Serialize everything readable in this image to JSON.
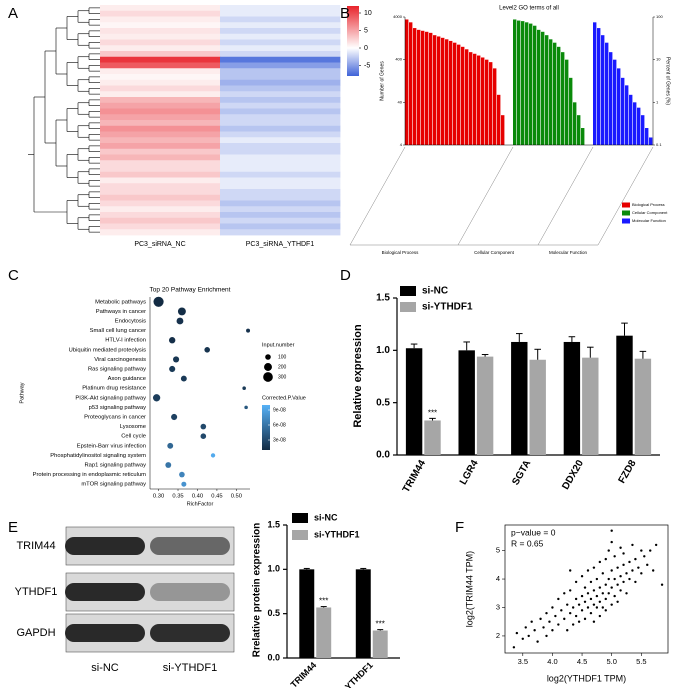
{
  "chart_data": [
    {
      "type": "heatmap",
      "panel": "A",
      "columns": [
        "PC3_siRNA_NC",
        "PC3_siRNA_YTHDF1"
      ],
      "values": [
        [
          1,
          -1
        ],
        [
          2,
          -1
        ],
        [
          1,
          -2
        ],
        [
          0.5,
          -1
        ],
        [
          1.5,
          -2
        ],
        [
          1,
          -1
        ],
        [
          2,
          -2
        ],
        [
          1,
          -1
        ],
        [
          3,
          -2
        ],
        [
          11,
          -7
        ],
        [
          9,
          -5
        ],
        [
          1,
          -3
        ],
        [
          0.5,
          -3
        ],
        [
          1,
          -4
        ],
        [
          2,
          -3
        ],
        [
          1,
          -2
        ],
        [
          4,
          -3
        ],
        [
          5,
          -2
        ],
        [
          6,
          -3
        ],
        [
          5,
          -2
        ],
        [
          4,
          -2
        ],
        [
          6,
          -3
        ],
        [
          5,
          -2
        ],
        [
          4,
          -1
        ],
        [
          5,
          -2
        ],
        [
          3,
          -2
        ],
        [
          4,
          -1
        ],
        [
          2,
          -1
        ],
        [
          2,
          -1
        ],
        [
          3,
          -2
        ],
        [
          1,
          -1
        ],
        [
          2,
          -1
        ],
        [
          2,
          -2
        ],
        [
          3,
          -2
        ],
        [
          2,
          -3
        ],
        [
          1,
          -2
        ],
        [
          2,
          -3
        ],
        [
          3,
          -2
        ],
        [
          2,
          -3
        ],
        [
          1,
          -2
        ]
      ],
      "zlim": [
        -8,
        12
      ],
      "zticks": [
        10,
        5,
        0,
        -5
      ],
      "colors": {
        "low": "#3f63d8",
        "mid": "#ffffff",
        "high": "#e8232b"
      }
    },
    {
      "type": "bar",
      "panel": "B",
      "title": "Level2 GO terms of all",
      "log": true,
      "ylabel": "Number of Genes",
      "y2label": "Percent of Genes (%)",
      "ylim": [
        4,
        4000
      ],
      "yticks": [
        4,
        40,
        400,
        4000
      ],
      "y2lim": [
        0.1,
        100
      ],
      "y2ticks": [
        0.1,
        1,
        10,
        100
      ],
      "series": [
        {
          "name": "Biological Process",
          "color": "#e60000",
          "values": [
            3500,
            3000,
            2200,
            2000,
            1900,
            1800,
            1700,
            1500,
            1400,
            1300,
            1200,
            1100,
            1000,
            900,
            800,
            700,
            600,
            550,
            500,
            450,
            400,
            350,
            250,
            60,
            20
          ]
        },
        {
          "name": "Cellular Component",
          "color": "#0a8a0a",
          "values": [
            3500,
            3300,
            3200,
            3000,
            2800,
            2500,
            2000,
            1800,
            1500,
            1200,
            1000,
            800,
            600,
            400,
            150,
            40,
            20,
            10
          ]
        },
        {
          "name": "Molecular Function",
          "color": "#1a1aff",
          "values": [
            3000,
            2200,
            1500,
            1000,
            600,
            400,
            250,
            150,
            100,
            60,
            40,
            30,
            20,
            10,
            6
          ]
        }
      ]
    },
    {
      "type": "dot",
      "panel": "C",
      "title": "Top 20 Pathway Enrichment",
      "xlabel": "RichFactor",
      "ylabel": "Pathway",
      "categories": [
        "Metabolic pathways",
        "Pathways in cancer",
        "Endocytosis",
        "Small cell lung cancer",
        "HTLV-I infection",
        "Ubiquitin mediated proteolysis",
        "Viral carcinogenesis",
        "Ras signaling pathway",
        "Axon guidance",
        "Platinum drug resistance",
        "PI3K-Akt signaling pathway",
        "p53 signaling pathway",
        "Proteoglycans in cancer",
        "Lysosome",
        "Cell cycle",
        "Epstein-Barr virus infection",
        "Phosphatidylinositol signaling system",
        "Rap1 signaling pathway",
        "Protein processing in endoplasmic reticulum",
        "mTOR signaling pathway"
      ],
      "x": [
        0.3,
        0.36,
        0.355,
        0.53,
        0.335,
        0.425,
        0.345,
        0.335,
        0.365,
        0.52,
        0.295,
        0.525,
        0.34,
        0.415,
        0.415,
        0.33,
        0.44,
        0.325,
        0.36,
        0.365
      ],
      "sizes": [
        330,
        200,
        150,
        50,
        130,
        100,
        120,
        120,
        110,
        40,
        170,
        40,
        120,
        100,
        100,
        110,
        60,
        110,
        100,
        80
      ],
      "pvalues": [
        1e-08,
        1.2e-08,
        1.5e-08,
        1.5e-08,
        1.3e-08,
        1.6e-08,
        1.8e-08,
        2e-08,
        2e-08,
        2e-08,
        2.2e-08,
        4e-08,
        2.5e-08,
        3e-08,
        3e-08,
        5e-08,
        9.5e-08,
        6e-08,
        7e-08,
        8e-08
      ],
      "xlim": [
        0.278,
        0.535
      ],
      "xticks": [
        {
          "value": 0.3,
          "label": "0.30"
        },
        0.35,
        {
          "value": 0.4,
          "label": "0.40"
        },
        0.45,
        {
          "value": 0.5,
          "label": "0.50"
        }
      ],
      "size_title": "Input.number",
      "size_ticks": [
        100,
        200,
        300
      ],
      "color_title": "Corrected.P.Value",
      "clim": [
        1e-08,
        1e-07
      ],
      "color_ticks": [
        {
          "value": 9e-08,
          "label": "9e-08"
        },
        {
          "value": 6e-08,
          "label": "6e-08"
        },
        {
          "value": 3e-08,
          "label": "3e-08"
        }
      ],
      "color_range": [
        "#132b43",
        "#56b1f7"
      ]
    },
    {
      "type": "bar",
      "panel": "D",
      "ylabel": "Relative expression",
      "categories": [
        "TRIM44",
        "LGR4",
        "SGTA",
        "DDX20",
        "FZD8"
      ],
      "ylim": [
        0,
        1.5
      ],
      "yticks": [
        {
          "value": 0,
          "label": "0.0"
        },
        0.5,
        {
          "value": 1,
          "label": "1.0"
        },
        1.5
      ],
      "series": [
        {
          "name": "si-NC",
          "color": "#000000",
          "values": [
            1.02,
            1.0,
            1.08,
            1.08,
            1.14
          ],
          "errors": [
            0.04,
            0.08,
            0.08,
            0.05,
            0.12
          ]
        },
        {
          "name": "si-YTHDF1",
          "color": "#a6a6a6",
          "values": [
            0.33,
            0.94,
            0.91,
            0.93,
            0.92
          ],
          "errors": [
            0.02,
            0.02,
            0.1,
            0.1,
            0.07
          ],
          "significance": [
            "***",
            null,
            null,
            null,
            null
          ]
        }
      ]
    },
    {
      "type": "blot",
      "panel": "E",
      "rows": [
        "TRIM44",
        "YTHDF1",
        "GAPDH"
      ],
      "lanes": [
        "si-NC",
        "si-YTHDF1"
      ]
    },
    {
      "type": "bar",
      "ylabel": "Rrelative protein expression",
      "categories": [
        "TRIM44",
        "YTHDF1"
      ],
      "ylim": [
        0,
        1.5
      ],
      "yticks": [
        {
          "value": 0,
          "label": "0.0"
        },
        0.5,
        {
          "value": 1,
          "label": "1.0"
        },
        1.5
      ],
      "series": [
        {
          "name": "si-NC",
          "color": "#000000",
          "values": [
            1.0,
            1.0
          ],
          "errors": [
            0.01,
            0.01
          ]
        },
        {
          "name": "si-YTHDF1",
          "color": "#a6a6a6",
          "values": [
            0.57,
            0.31
          ],
          "errors": [
            0.01,
            0.01
          ],
          "significance": [
            "***",
            "***"
          ]
        }
      ]
    },
    {
      "type": "scatter",
      "panel": "F",
      "xlabel": "log2(YTHDF1 TPM)",
      "ylabel": "log2(TRIM44 TPM)",
      "annotations": [
        "p−value = 0",
        "R = 0.65"
      ],
      "color": "#000000",
      "xlim": [
        3.2,
        5.95
      ],
      "ylim": [
        1.4,
        5.9
      ],
      "xticks": [
        3.5,
        {
          "value": 4,
          "label": "4.0"
        },
        4.5,
        {
          "value": 5,
          "label": "5.0"
        },
        5.5
      ],
      "yticks": [
        2,
        3,
        4,
        5
      ],
      "x": [
        3.35,
        3.4,
        3.5,
        3.55,
        3.6,
        3.65,
        3.7,
        3.75,
        3.8,
        3.85,
        3.9,
        3.9,
        3.95,
        4.0,
        4.0,
        4.05,
        4.1,
        4.1,
        4.15,
        4.2,
        4.2,
        4.25,
        4.25,
        4.3,
        4.3,
        4.35,
        4.35,
        4.4,
        4.4,
        4.4,
        4.45,
        4.45,
        4.5,
        4.5,
        4.5,
        4.55,
        4.55,
        4.55,
        4.6,
        4.6,
        4.6,
        4.65,
        4.65,
        4.65,
        4.7,
        4.7,
        4.7,
        4.7,
        4.75,
        4.75,
        4.75,
        4.8,
        4.8,
        4.8,
        4.8,
        4.85,
        4.85,
        4.85,
        4.9,
        4.9,
        4.9,
        4.9,
        4.95,
        4.95,
        4.95,
        5.0,
        5.0,
        5.0,
        5.0,
        5.05,
        5.05,
        5.05,
        5.1,
        5.1,
        5.1,
        5.15,
        5.15,
        5.15,
        5.2,
        5.2,
        5.2,
        5.25,
        5.25,
        5.3,
        5.3,
        5.35,
        5.35,
        5.4,
        5.4,
        5.45,
        5.5,
        5.5,
        5.55,
        5.6,
        5.65,
        5.7,
        5.75,
        5.85,
        5.0,
        4.3
      ],
      "y": [
        1.6,
        2.1,
        1.9,
        2.3,
        2.0,
        2.5,
        2.2,
        1.8,
        2.6,
        2.3,
        2.0,
        2.8,
        2.5,
        2.2,
        3.0,
        2.7,
        2.4,
        3.3,
        2.9,
        2.6,
        3.5,
        2.2,
        3.1,
        2.8,
        3.6,
        3.0,
        2.4,
        3.3,
        2.7,
        3.9,
        3.1,
        2.5,
        3.4,
        2.9,
        4.1,
        3.2,
        2.6,
        3.7,
        3.0,
        3.5,
        4.3,
        2.8,
        3.3,
        3.9,
        3.1,
        3.6,
        2.5,
        4.4,
        3.4,
        3.0,
        4.0,
        3.7,
        3.2,
        4.6,
        2.7,
        3.5,
        4.2,
        3.0,
        3.8,
        3.3,
        4.7,
        2.9,
        4.0,
        3.5,
        5.0,
        3.7,
        4.3,
        3.1,
        5.3,
        4.0,
        3.4,
        4.8,
        3.8,
        4.4,
        3.2,
        4.1,
        5.1,
        3.6,
        4.5,
        3.9,
        4.9,
        4.2,
        3.5,
        4.6,
        4.0,
        4.3,
        5.2,
        4.7,
        3.9,
        4.4,
        5.0,
        4.2,
        4.8,
        4.5,
        5.0,
        4.3,
        5.2,
        3.8,
        5.7,
        4.3
      ]
    }
  ]
}
